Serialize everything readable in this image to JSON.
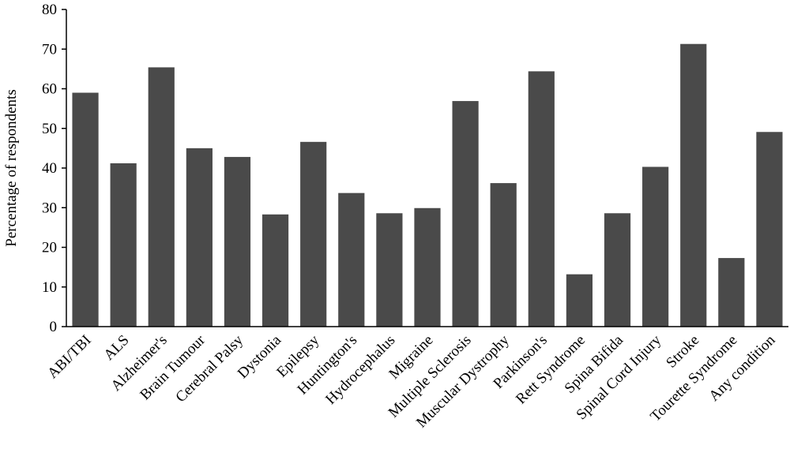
{
  "chart_data": {
    "type": "bar",
    "title": "",
    "xlabel": "",
    "ylabel": "Percentage of respondents",
    "ylim": [
      0,
      80
    ],
    "yticks": [
      0,
      10,
      20,
      30,
      40,
      50,
      60,
      70,
      80
    ],
    "grid": false,
    "legend": "none",
    "bar_color": "#4a4a4a",
    "categories": [
      "ABI/TBI",
      "ALS",
      "Alzheimer's",
      "Brain Tumour",
      "Cerebral Palsy",
      "Dystonia",
      "Epilepsy",
      "Huntington's",
      "Hydrocephalus",
      "Migraine",
      "Multiple Sclerosis",
      "Muscular Dystrophy",
      "Parkinson's",
      "Rett Syndrome",
      "Spina Bifida",
      "Spinal Cord Injury",
      "Stroke",
      "Tourette Syndrome",
      "Any condition"
    ],
    "values": [
      59.0,
      41.2,
      65.4,
      45.0,
      42.8,
      28.3,
      46.6,
      33.7,
      28.6,
      29.9,
      56.9,
      36.2,
      64.4,
      13.2,
      28.6,
      40.3,
      71.3,
      17.3,
      49.1
    ]
  }
}
